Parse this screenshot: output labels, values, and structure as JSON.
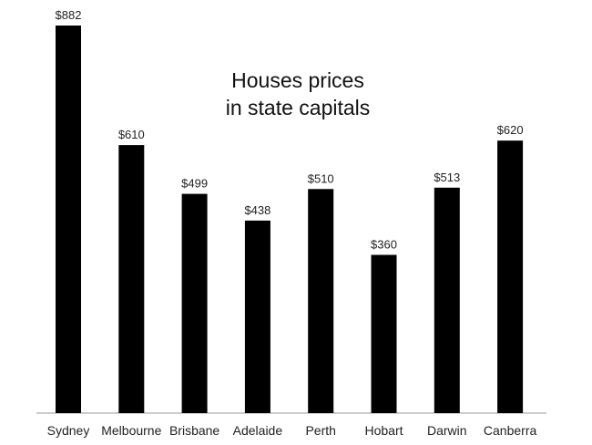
{
  "chart_data": {
    "type": "bar",
    "title_lines": [
      "Houses prices",
      "in state capitals"
    ],
    "categories": [
      "Sydney",
      "Melbourne",
      "Brisbane",
      "Adelaide",
      "Perth",
      "Hobart",
      "Darwin",
      "Canberra"
    ],
    "values": [
      882,
      610,
      499,
      438,
      510,
      360,
      513,
      620
    ],
    "data_labels": [
      "$882",
      "$610",
      "$499",
      "$438",
      "$510",
      "$360",
      "$513",
      "$620"
    ],
    "xlabel": "",
    "ylabel": "",
    "ylim": [
      0,
      882
    ],
    "grid": false,
    "legend": "none",
    "bar_color": "#000000",
    "axis_color": "#999999"
  }
}
